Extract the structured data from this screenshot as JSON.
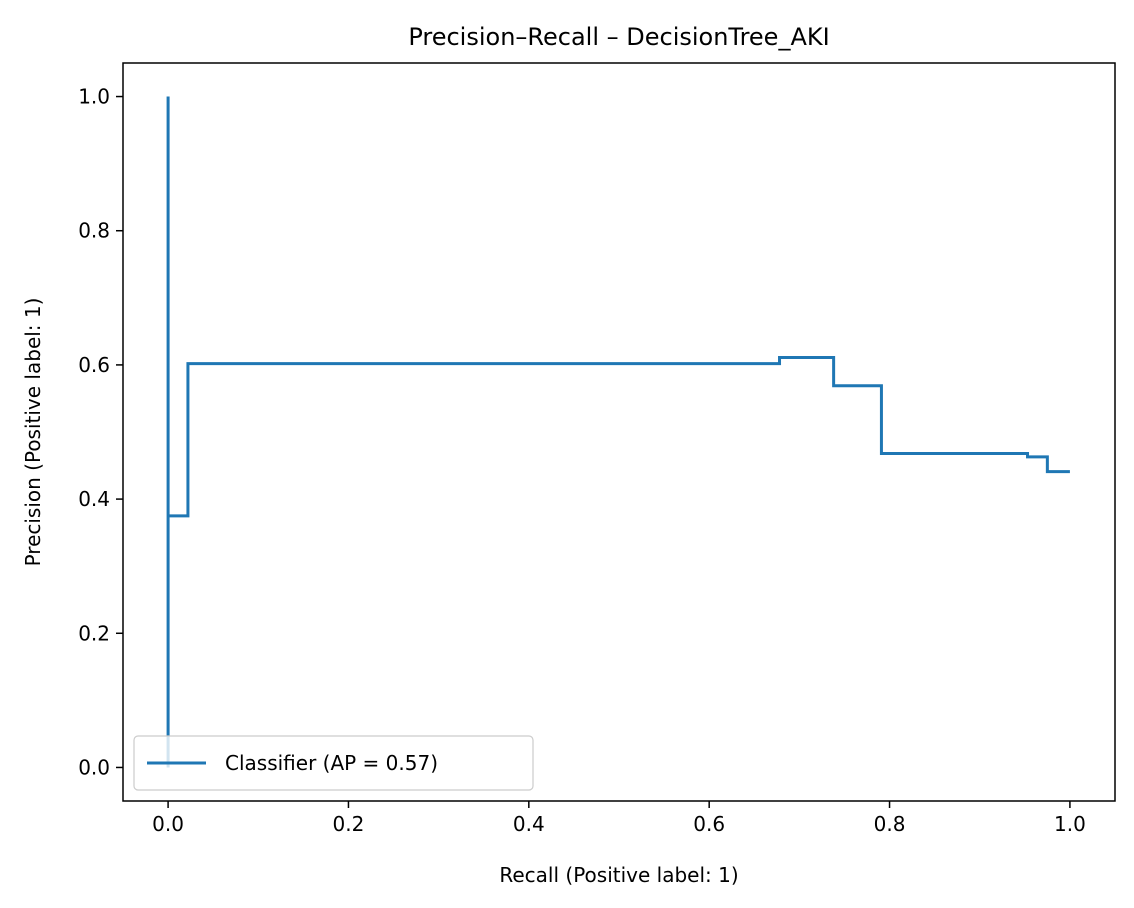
{
  "chart_data": {
    "type": "line",
    "title": "Precision–Recall – DecisionTree_AKI",
    "xlabel": "Recall (Positive label: 1)",
    "ylabel": "Precision (Positive label: 1)",
    "xlim": [
      -0.05,
      1.05
    ],
    "ylim": [
      -0.05,
      1.05
    ],
    "xticks": [
      0.0,
      0.2,
      0.4,
      0.6,
      0.8,
      1.0
    ],
    "xtick_labels": [
      "0.0",
      "0.2",
      "0.4",
      "0.6",
      "0.8",
      "1.0"
    ],
    "yticks": [
      0.0,
      0.2,
      0.4,
      0.6,
      0.8,
      1.0
    ],
    "ytick_labels": [
      "0.0",
      "0.2",
      "0.4",
      "0.6",
      "0.8",
      "1.0"
    ],
    "grid": false,
    "legend_position": "lower-left",
    "series": [
      {
        "name": "Classifier (AP = 0.57)",
        "color": "#1f77b4",
        "drawstyle": "steps-post",
        "x": [
          0.0,
          0.0,
          0.0,
          0.0,
          0.022,
          0.022,
          0.678,
          0.678,
          0.738,
          0.738,
          0.791,
          0.791,
          0.953,
          0.953,
          0.975,
          0.975,
          1.0
        ],
        "y": [
          1.0,
          0.0,
          0.375,
          0.375,
          0.375,
          0.602,
          0.602,
          0.611,
          0.611,
          0.569,
          0.569,
          0.468,
          0.468,
          0.463,
          0.463,
          0.441,
          0.441
        ]
      }
    ]
  }
}
